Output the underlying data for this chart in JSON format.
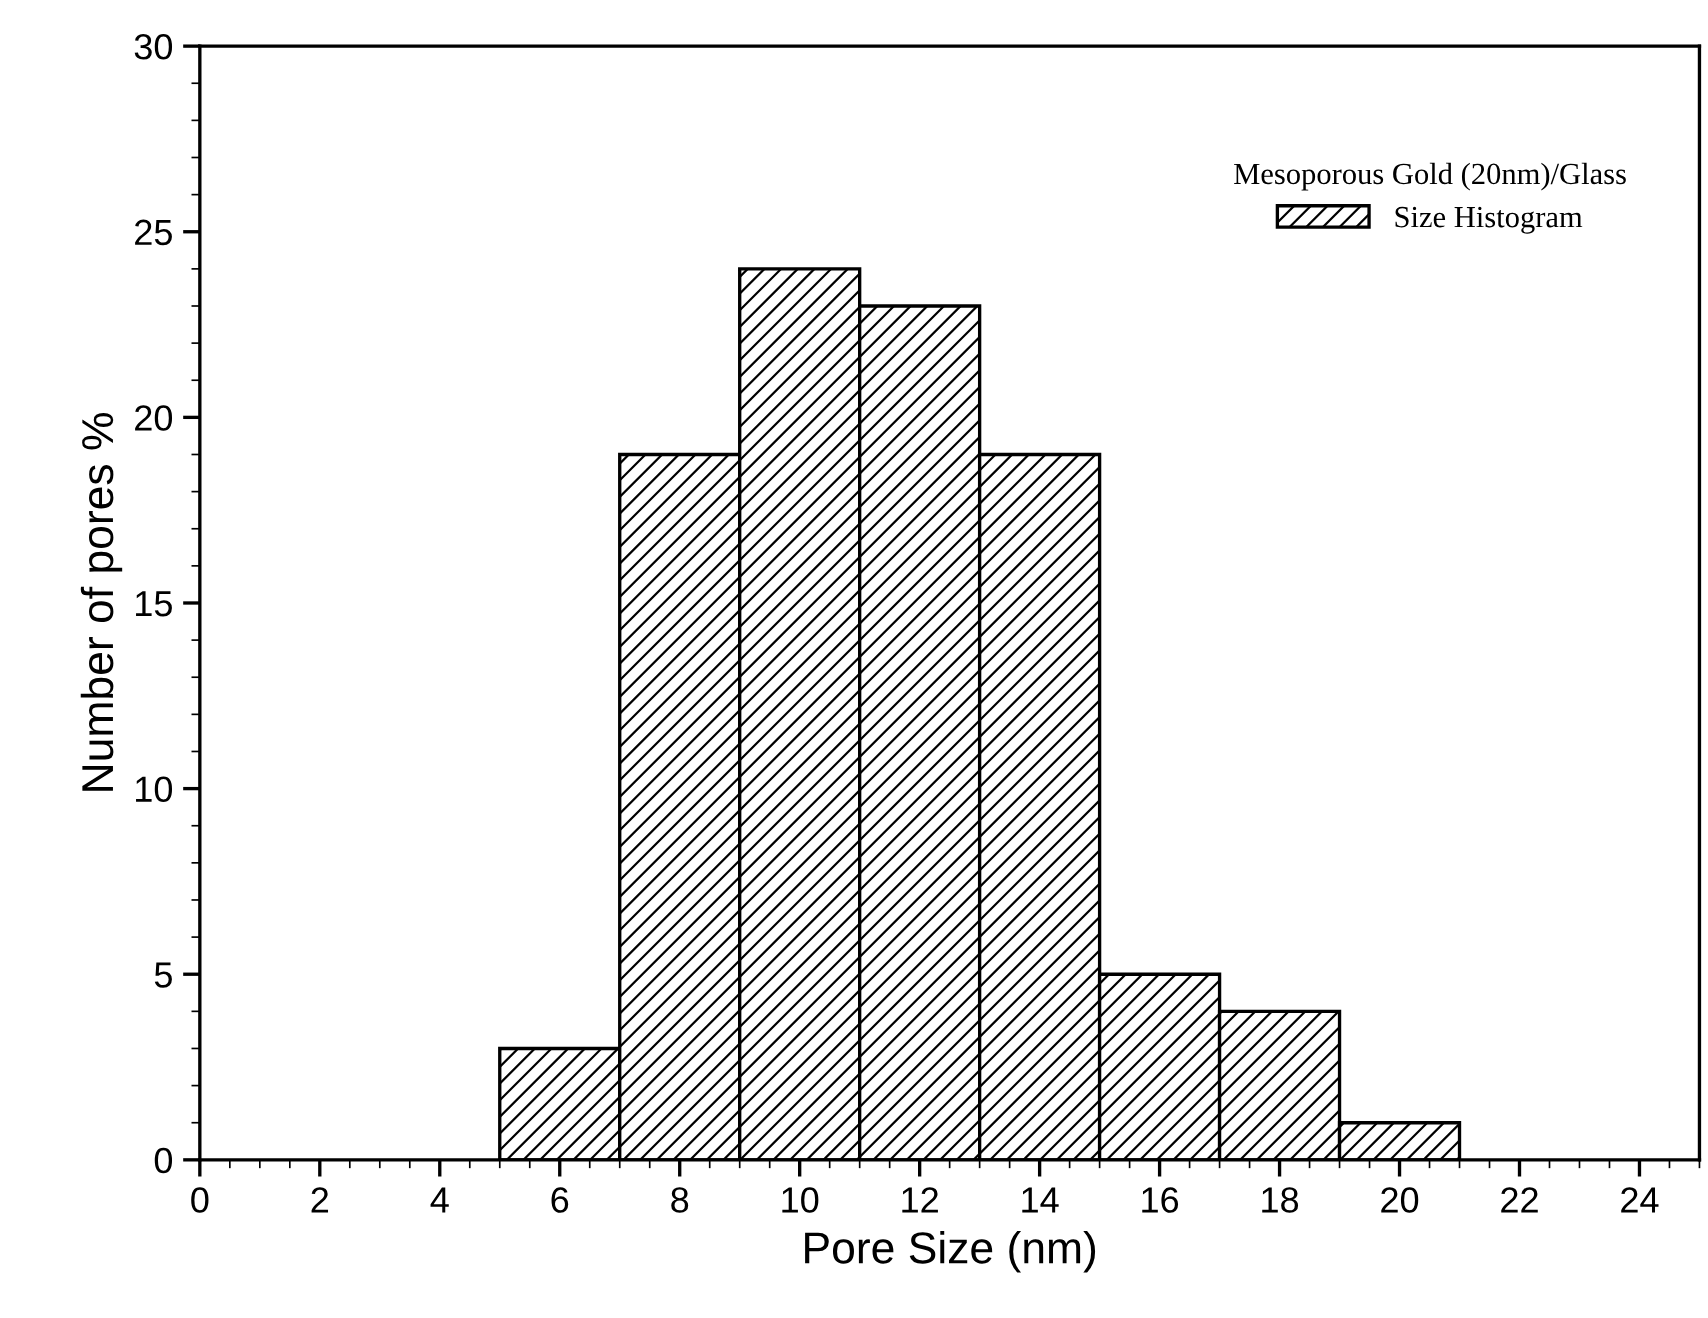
{
  "chart_data": {
    "type": "histogram",
    "xlabel": "Pore Size (nm)",
    "ylabel": "Number of pores %",
    "legend_title": "Mesoporous Gold (20nm)/Glass",
    "bins": [
      5,
      7,
      9,
      11,
      13,
      15,
      17,
      19,
      21
    ],
    "series": [
      {
        "name": "Size Histogram",
        "color": "#000000",
        "values": [
          3,
          19,
          24,
          23,
          19,
          5,
          4,
          1
        ]
      }
    ],
    "xlim": [
      0,
      25
    ],
    "xticks": [
      0,
      2,
      4,
      6,
      8,
      10,
      12,
      14,
      16,
      18,
      20,
      22,
      24
    ],
    "ylim": [
      0,
      30
    ],
    "yticks": [
      0,
      5,
      10,
      15,
      20,
      25,
      30
    ],
    "grid": false,
    "legend": "top right"
  }
}
